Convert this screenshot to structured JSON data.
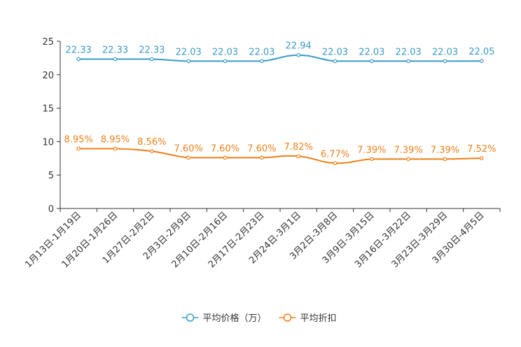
{
  "chart_data": {
    "type": "line",
    "title": "",
    "xlabel": "",
    "ylabel": "",
    "ylim": [
      0,
      25
    ],
    "yticks": [
      0,
      5,
      10,
      15,
      20,
      25
    ],
    "grid": false,
    "legend_position": "bottom-center",
    "categories": [
      "1月13日-1月19日",
      "1月20日-1月26日",
      "1月27日-2月2日",
      "2月3日-2月9日",
      "2月10日-2月16日",
      "2月17日-2月23日",
      "2月24日-3月1日",
      "3月2日-3月8日",
      "3月9日-3月15日",
      "3月16日-3月22日",
      "3月23日-3月29日",
      "3月30日-4月5日"
    ],
    "series": [
      {
        "name": "平均价格（万）",
        "color": "#3a9bc8",
        "values": [
          22.33,
          22.33,
          22.33,
          22.03,
          22.03,
          22.03,
          22.94,
          22.03,
          22.03,
          22.03,
          22.03,
          22.05
        ],
        "labels": [
          "22.33",
          "22.33",
          "22.33",
          "22.03",
          "22.03",
          "22.03",
          "22.94",
          "22.03",
          "22.03",
          "22.03",
          "22.03",
          "22.05"
        ]
      },
      {
        "name": "平均折扣",
        "color": "#f07f17",
        "values": [
          8.95,
          8.95,
          8.56,
          7.6,
          7.6,
          7.6,
          7.82,
          6.77,
          7.39,
          7.39,
          7.39,
          7.52
        ],
        "labels": [
          "8.95%",
          "8.95%",
          "8.56%",
          "7.60%",
          "7.60%",
          "7.60%",
          "7.82%",
          "6.77%",
          "7.39%",
          "7.39%",
          "7.39%",
          "7.52%"
        ]
      }
    ]
  }
}
